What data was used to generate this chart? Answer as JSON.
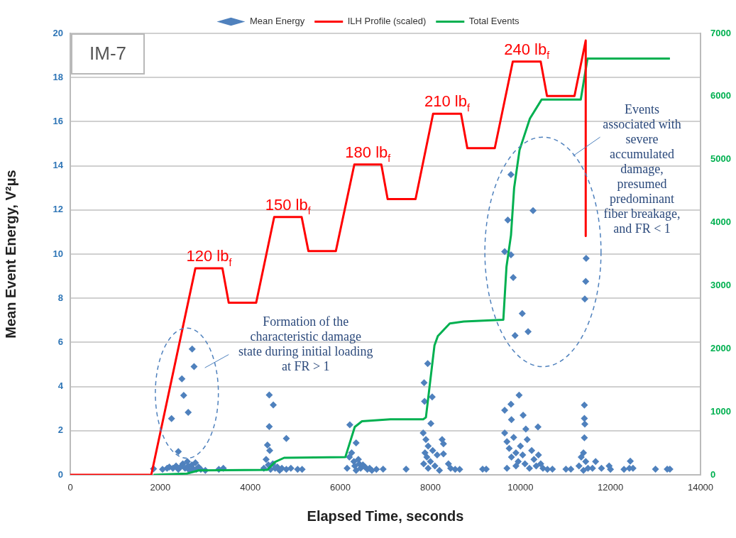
{
  "chart_data": {
    "type": "scatter",
    "xlabel": "Elapsed Time, seconds",
    "ylabel": "Mean Event Energy, V²μs",
    "xlim": [
      0,
      14000
    ],
    "xticks": [
      0,
      2000,
      4000,
      6000,
      8000,
      10000,
      12000,
      14000
    ],
    "ylim": [
      0,
      20
    ],
    "yticks": [
      0,
      2,
      4,
      6,
      8,
      10,
      12,
      14,
      16,
      18,
      20
    ],
    "y2lim": [
      0,
      7000
    ],
    "y2ticks": [
      0,
      1000,
      2000,
      3000,
      4000,
      5000,
      6000,
      7000
    ],
    "grid": "y",
    "legend": "top",
    "marker": "diamond",
    "series": [
      {
        "name": "Mean Energy",
        "color": "#4f81bd",
        "x": [
          1850,
          2050,
          2150,
          2200,
          2250,
          2280,
          2350,
          2400,
          2400,
          2450,
          2480,
          2500,
          2520,
          2550,
          2600,
          2620,
          2620,
          2650,
          2700,
          2708,
          2720,
          2750,
          2780,
          2800,
          2850,
          2900,
          3000,
          3300,
          3400,
          4300,
          4350,
          4380,
          4400,
          4420,
          4420,
          4430,
          4450,
          4500,
          4510,
          4550,
          4600,
          4650,
          4700,
          4800,
          4800,
          4900,
          5050,
          5150,
          6150,
          6200,
          6210,
          6250,
          6300,
          6320,
          6350,
          6350,
          6400,
          6420,
          6450,
          6500,
          6550,
          6600,
          6650,
          6700,
          6800,
          6950,
          7460,
          7840,
          7850,
          7860,
          7870,
          7880,
          7900,
          7920,
          7940,
          7950,
          7950,
          8000,
          8010,
          8040,
          8050,
          8100,
          8150,
          8200,
          8260,
          8290,
          8290,
          8400,
          8450,
          8550,
          8650,
          9160,
          9240,
          9650,
          9650,
          9650,
          9700,
          9700,
          9720,
          9750,
          9790,
          9790,
          9790,
          9800,
          9800,
          9840,
          9850,
          9880,
          9900,
          9900,
          9950,
          9970,
          10000,
          10040,
          10050,
          10060,
          10100,
          10120,
          10150,
          10170,
          10200,
          10250,
          10280,
          10300,
          10350,
          10390,
          10400,
          10450,
          10500,
          10600,
          10710,
          11010,
          11120,
          11300,
          11350,
          11400,
          11400,
          11420,
          11420,
          11420,
          11430,
          11430,
          11450,
          11450,
          11460,
          11500,
          11600,
          11670,
          11800,
          11970,
          12000,
          12300,
          12420,
          12440,
          12500,
          13000,
          13260,
          13320
        ],
        "values": [
          0.27,
          0.25,
          0.3,
          0.35,
          2.55,
          0.3,
          0.4,
          0.25,
          1.05,
          0.35,
          4.35,
          0.5,
          3.6,
          0.3,
          0.6,
          0.4,
          2.83,
          0.2,
          0.45,
          5.7,
          0.3,
          4.9,
          0.55,
          0.25,
          0.35,
          0.25,
          0.2,
          0.25,
          0.3,
          0.3,
          0.7,
          1.35,
          0.45,
          3.62,
          2.19,
          1.1,
          0.25,
          0.5,
          3.17,
          0.3,
          0.35,
          0.2,
          0.3,
          1.65,
          0.25,
          0.3,
          0.25,
          0.25,
          0.3,
          0.8,
          2.27,
          1.0,
          0.6,
          0.4,
          1.45,
          0.2,
          0.7,
          0.5,
          0.3,
          0.45,
          0.35,
          0.25,
          0.3,
          0.2,
          0.25,
          0.26,
          0.26,
          1.9,
          0.5,
          4.17,
          3.33,
          1.0,
          1.6,
          0.8,
          5.04,
          1.3,
          0.3,
          0.6,
          2.32,
          3.53,
          1.1,
          0.4,
          0.9,
          0.2,
          1.6,
          1.41,
          0.95,
          0.5,
          0.3,
          0.25,
          0.25,
          0.26,
          0.26,
          2.93,
          1.9,
          10.11,
          1.5,
          0.3,
          11.54,
          1.2,
          3.2,
          9.97,
          13.6,
          2.5,
          0.8,
          8.94,
          1.7,
          6.31,
          1.0,
          0.4,
          0.6,
          3.61,
          1.3,
          7.31,
          0.9,
          2.7,
          0.5,
          2.07,
          1.6,
          6.49,
          0.3,
          1.1,
          11.97,
          0.7,
          0.4,
          2.17,
          0.9,
          0.5,
          0.3,
          0.25,
          0.26,
          0.26,
          0.26,
          0.4,
          0.8,
          1.0,
          0.2,
          3.16,
          2.56,
          1.68,
          2.3,
          7.97,
          0.6,
          8.76,
          9.81,
          0.3,
          0.3,
          0.6,
          0.3,
          0.4,
          0.25,
          0.25,
          0.3,
          0.62,
          0.3,
          0.26,
          0.26,
          0.26
        ]
      },
      {
        "name": "ILH Profile (scaled)",
        "type": "line",
        "marker": "none",
        "color": "#ff0000",
        "x": [
          0,
          1800,
          2780,
          3380,
          3520,
          4130,
          4530,
          5140,
          5290,
          5900,
          6310,
          6910,
          7050,
          7670,
          8060,
          8680,
          8820,
          9430,
          9830,
          10450,
          10590,
          11200,
          11450,
          11450
        ],
        "values": [
          0,
          0,
          9.36,
          9.36,
          7.8,
          7.8,
          11.68,
          11.68,
          10.14,
          10.14,
          14.06,
          14.06,
          12.49,
          12.49,
          16.36,
          16.36,
          14.8,
          14.8,
          18.72,
          18.72,
          17.16,
          17.16,
          19.68,
          10.82
        ]
      },
      {
        "name": "Total Events",
        "type": "line",
        "marker": "none",
        "axis": "y2",
        "color": "#00b050",
        "x": [
          1850,
          2590,
          2855,
          4380,
          4540,
          4750,
          6110,
          6320,
          6480,
          7110,
          7840,
          7900,
          8090,
          8165,
          8430,
          8740,
          9620,
          9690,
          9790,
          9860,
          9980,
          10210,
          10470,
          11340,
          11490,
          13320
        ],
        "values": [
          0,
          20,
          70,
          80,
          200,
          270,
          280,
          760,
          850,
          880,
          880,
          910,
          2050,
          2200,
          2400,
          2430,
          2460,
          3300,
          3800,
          4550,
          5150,
          5650,
          5950,
          5950,
          6600,
          6600
        ]
      }
    ],
    "annotations": [
      "IM-7",
      {
        "text": "120 lb$_{f}$",
        "x": 3080,
        "y": 9.36
      },
      {
        "text": "150 lb$_{f}$",
        "x": 4835,
        "y": 11.68
      },
      {
        "text": "180 lb$_{f}$",
        "x": 6610,
        "y": 14.06
      },
      {
        "text": "210 lb$_{f}$",
        "x": 8370,
        "y": 16.36
      },
      {
        "text": "240 lb$_{f}$",
        "x": 10140,
        "y": 18.72
      },
      "Formation of the characteristic damage state during initial loading at FR > 1",
      "Events associated with severe accumulated damage, presumed predominant fiber breakage, and FR < 1"
    ]
  }
}
